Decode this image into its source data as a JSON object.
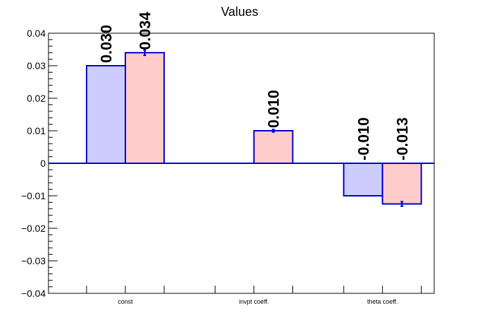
{
  "chart_data": {
    "type": "bar",
    "title": "Values",
    "categories": [
      "const",
      "invpt coeff.",
      "theta coeff."
    ],
    "ylim": [
      -0.04,
      0.04
    ],
    "y_ticks": [
      {
        "value": 0.04,
        "label": "0.04"
      },
      {
        "value": 0.03,
        "label": "0.03"
      },
      {
        "value": 0.02,
        "label": "0.02"
      },
      {
        "value": 0.01,
        "label": "0.01"
      },
      {
        "value": 0,
        "label": "0"
      },
      {
        "value": -0.01,
        "label": "−0.01"
      },
      {
        "value": -0.02,
        "label": "−0.02"
      },
      {
        "value": -0.03,
        "label": "−0.03"
      },
      {
        "value": -0.04,
        "label": "−0.04"
      }
    ],
    "grid": false,
    "legend": "none",
    "series": [
      {
        "values": [
          0.03,
          null,
          -0.01
        ],
        "errors": [
          0.0,
          null,
          0.0
        ],
        "labels": [
          "0.030",
          "",
          "-0.010"
        ],
        "fill": "#ccccff",
        "edge": "#0000cc"
      },
      {
        "values": [
          0.034,
          0.01,
          -0.0125
        ],
        "errors": [
          0.0008,
          0.0004,
          0.0007
        ],
        "labels": [
          "0.034",
          "0.010",
          "-0.013"
        ],
        "fill": "#ffcccc",
        "edge": "#0000cc"
      }
    ],
    "zero_line_color": "#0000cc"
  }
}
